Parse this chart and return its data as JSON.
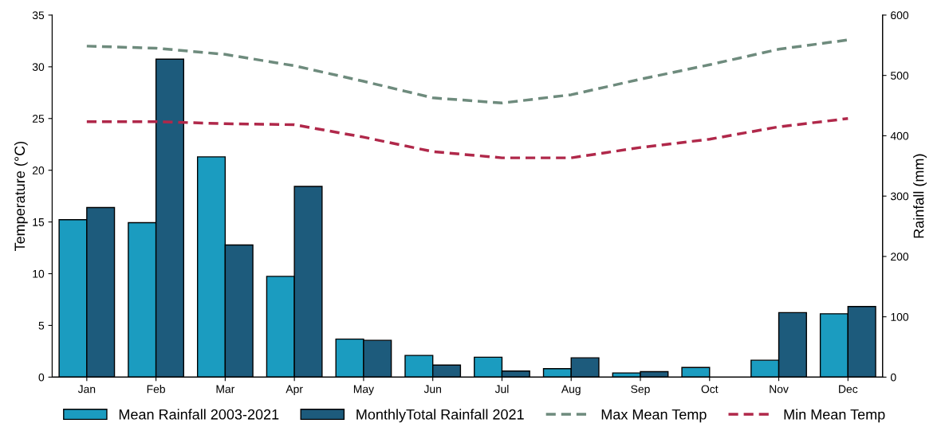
{
  "chart_data": {
    "type": "bar",
    "ylabel": "Temperature (°C)",
    "y2label": "Rainfall (mm)",
    "categories": [
      "Jan",
      "Feb",
      "Mar",
      "Apr",
      "May",
      "Jun",
      "Jul",
      "Aug",
      "Sep",
      "Oct",
      "Nov",
      "Dec"
    ],
    "series": [
      {
        "name": "Mean Rainfall 2003-2021",
        "axis": "y2",
        "color": "#1b9cc0",
        "values": [
          261,
          256,
          365,
          167,
          63,
          36,
          33,
          14,
          7,
          16,
          28,
          105
        ]
      },
      {
        "name": "MonthlyTotal Rainfall 2021",
        "axis": "y2",
        "color": "#1d5b7c",
        "values": [
          281,
          527,
          219,
          316,
          61,
          20,
          10,
          32,
          9,
          null,
          107,
          117
        ]
      },
      {
        "name": "Max Mean Temp",
        "type": "line",
        "axis": "y",
        "color": "#6e8b7d",
        "line_style": "dashed",
        "values": [
          32.0,
          31.8,
          31.2,
          30.1,
          28.6,
          27.0,
          26.5,
          27.3,
          28.8,
          30.2,
          31.7,
          32.6
        ]
      },
      {
        "name": "Min Mean Temp",
        "type": "line",
        "axis": "y",
        "color": "#b0284a",
        "line_style": "dashed",
        "values": [
          24.7,
          24.7,
          24.5,
          24.4,
          23.2,
          21.8,
          21.2,
          21.2,
          22.2,
          23.0,
          24.2,
          25.0
        ]
      }
    ],
    "ylim": [
      0,
      35
    ],
    "yticks": [
      0,
      5,
      10,
      15,
      20,
      25,
      30,
      35
    ],
    "y2lim": [
      0,
      600
    ],
    "y2ticks": [
      0,
      100,
      200,
      300,
      400,
      500,
      600
    ],
    "grid": false,
    "legend": "bottom",
    "marker": "none"
  }
}
